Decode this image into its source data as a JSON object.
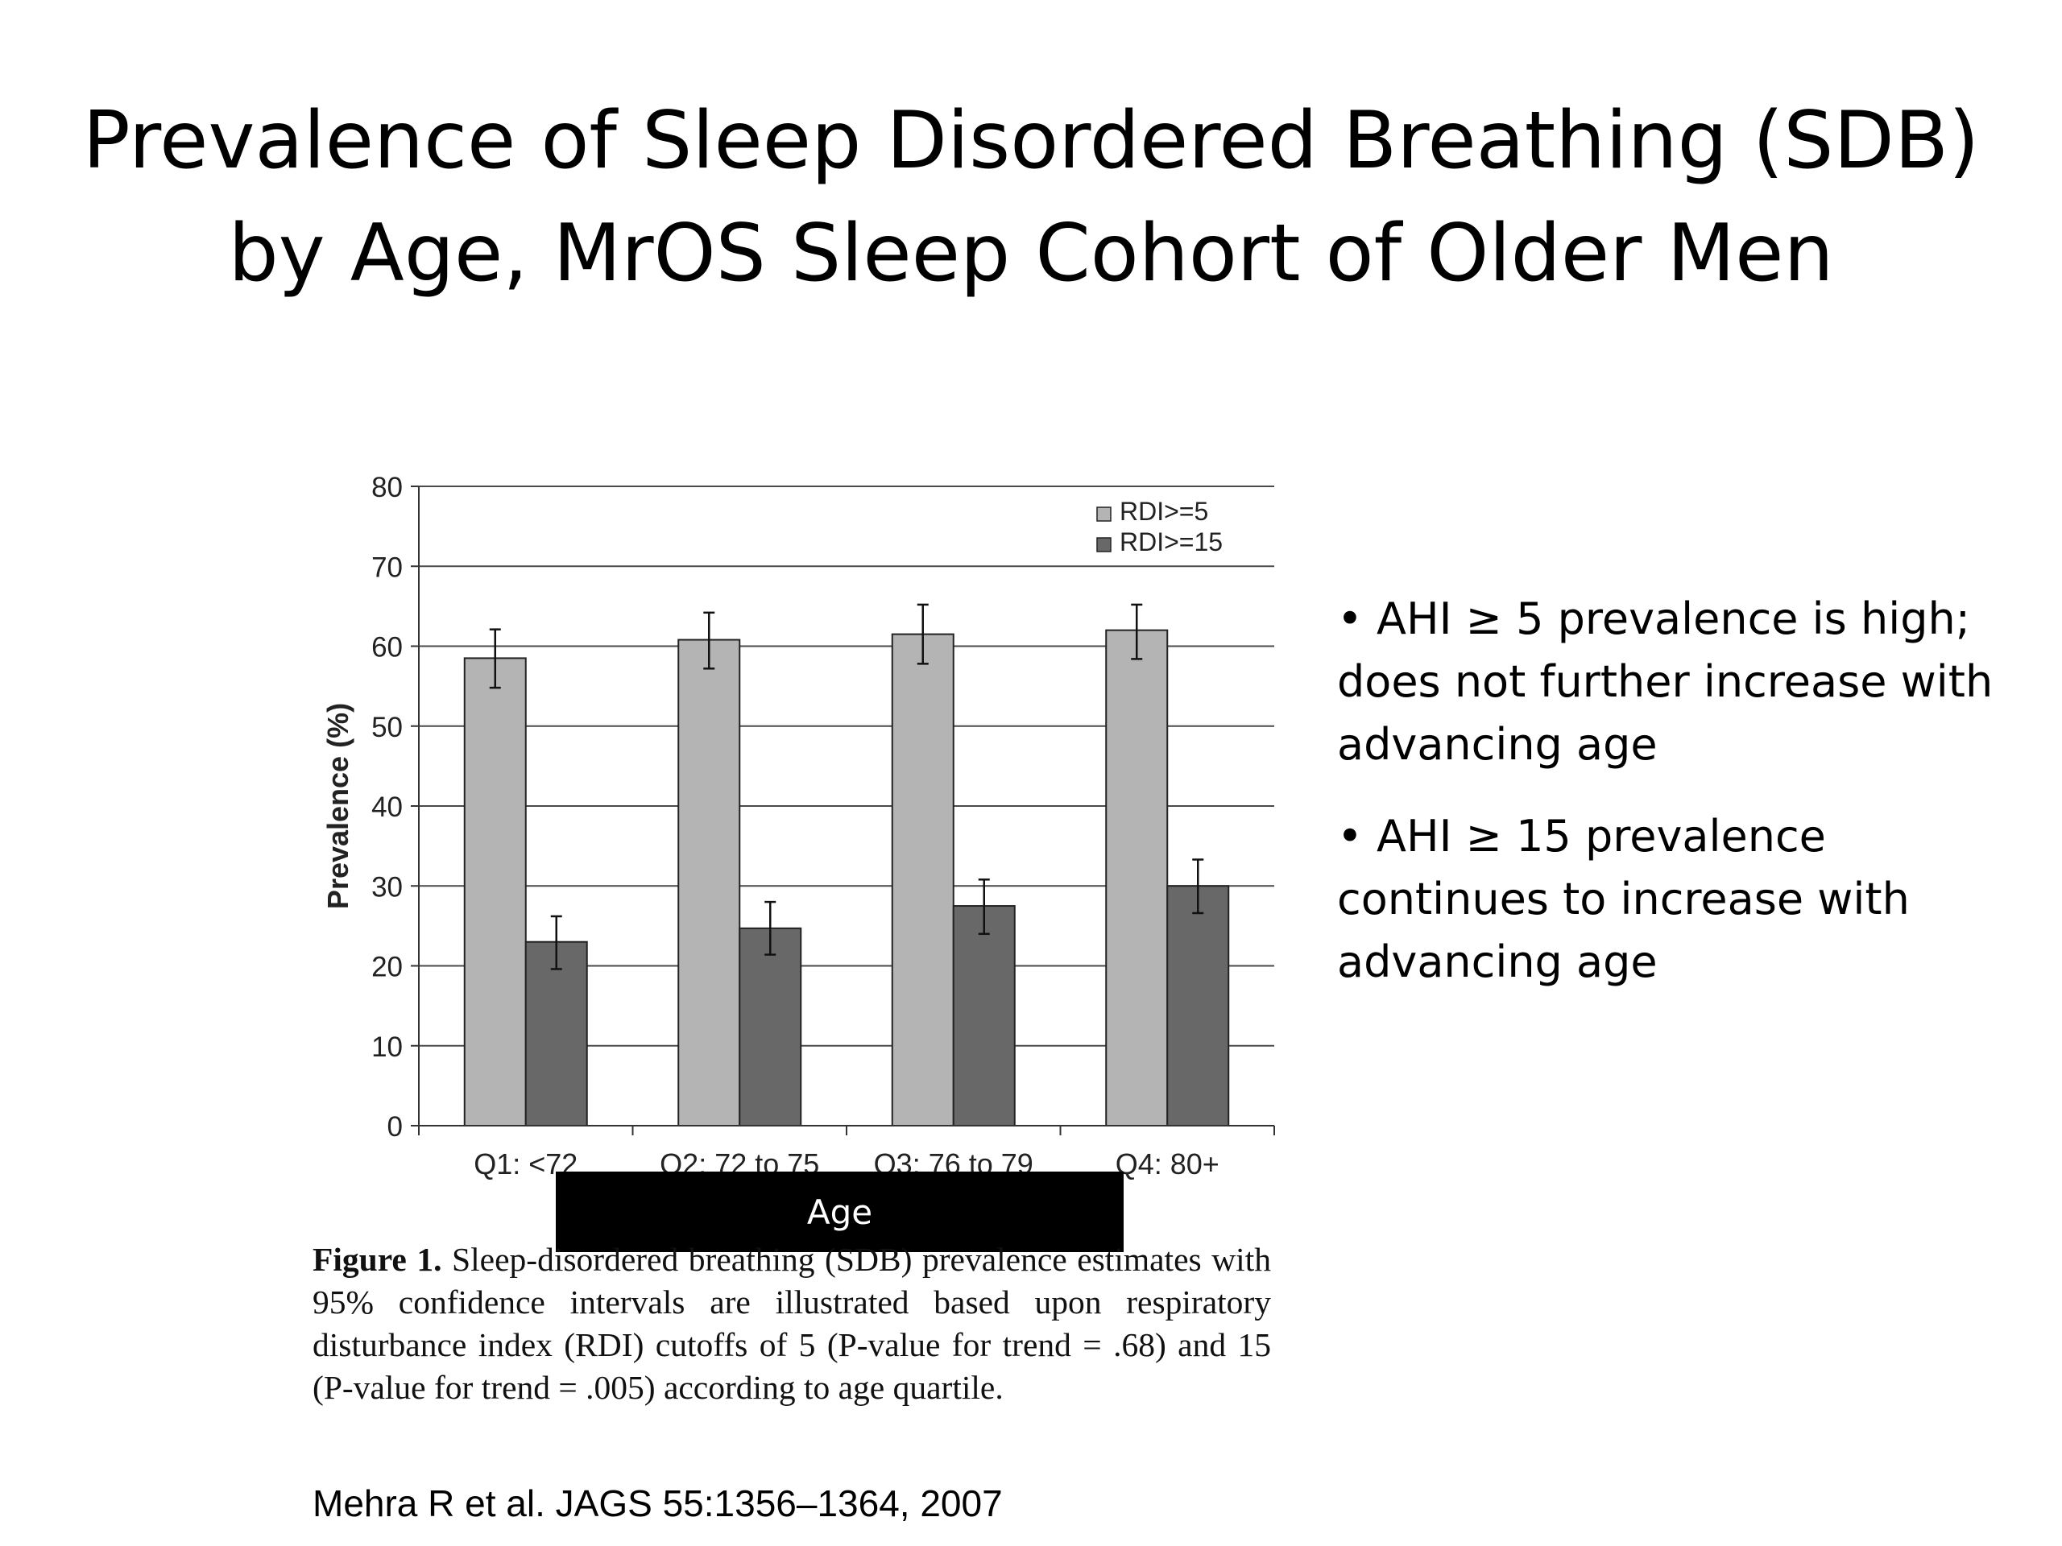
{
  "title": {
    "line1": "Prevalence of Sleep Disordered Breathing (SDB)",
    "line2": "by Age, MrOS Sleep Cohort of Older Men"
  },
  "bullets": [
    "• AHI ≥ 5 prevalence is high; does not further increase with advancing age",
    "• AHI ≥ 15 prevalence continues to increase with advancing age"
  ],
  "colors": {
    "series1": "#b4b4b4",
    "series2": "#686868",
    "gridline": "#4a4a4a",
    "age_box": "#000000"
  },
  "chart_data": {
    "type": "bar",
    "title": "",
    "xlabel": "Age",
    "ylabel": "Prevalence (%)",
    "ylim": [
      0,
      80
    ],
    "yticks": [
      0,
      10,
      20,
      30,
      40,
      50,
      60,
      70,
      80
    ],
    "grid": true,
    "legend_position": "top-right",
    "categories": [
      "Q1: <72",
      "Q2: 72 to 75",
      "Q3: 76 to 79",
      "Q4: 80+"
    ],
    "series": [
      {
        "name": "RDI>=5",
        "values": [
          58.5,
          60.8,
          61.5,
          62.0
        ],
        "ci_low": [
          54.8,
          57.2,
          57.8,
          58.4
        ],
        "ci_high": [
          62.1,
          64.2,
          65.2,
          65.2
        ]
      },
      {
        "name": "RDI>=15",
        "values": [
          23.0,
          24.7,
          27.5,
          30.0
        ],
        "ci_low": [
          19.6,
          21.4,
          24.0,
          26.6
        ],
        "ci_high": [
          26.2,
          28.0,
          30.8,
          33.3
        ]
      }
    ]
  },
  "caption": {
    "label": "Figure 1.",
    "text": "Sleep-disordered breathing (SDB) prevalence estimates with 95% confidence intervals are illustrated based upon respiratory disturbance index (RDI) cutoffs of 5 (P-value for trend = .68) and 15 (P-value for trend = .005) according to age quartile."
  },
  "citation": "Mehra R et al. JAGS 55:1356–1364, 2007"
}
